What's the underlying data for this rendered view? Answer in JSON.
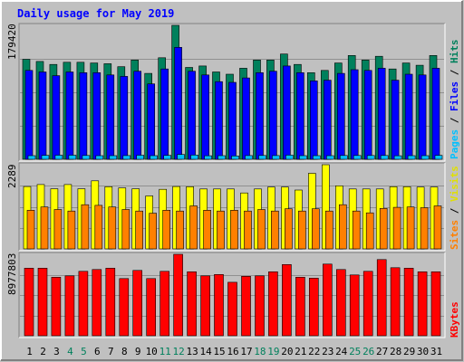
{
  "chart_data": {
    "type": "bar",
    "title": "Daily usage for May 2019",
    "colors": {
      "background": "#C0C0C0",
      "title": "#0000FF",
      "hits": "#00805C",
      "files": "#0000FF",
      "pages": "#00C0FF",
      "visits": "#FFFF00",
      "sites": "#FF8000",
      "kbytes": "#FF0000",
      "weekend": "#00805C",
      "weekday": "#000000"
    },
    "categories": [
      "1",
      "2",
      "3",
      "4",
      "5",
      "6",
      "7",
      "8",
      "9",
      "10",
      "11",
      "12",
      "13",
      "14",
      "15",
      "16",
      "17",
      "18",
      "19",
      "20",
      "21",
      "22",
      "23",
      "24",
      "25",
      "26",
      "27",
      "28",
      "29",
      "30",
      "31"
    ],
    "weekend_days": [
      4,
      5,
      11,
      12,
      18,
      19,
      25,
      26
    ],
    "panels": [
      {
        "id": "hits-panel",
        "ymax": 179420,
        "ymax_label": "179420",
        "legend": [
          {
            "name": "Pages",
            "color": "#00C0FF"
          },
          {
            "name": "Files",
            "color": "#0000FF"
          },
          {
            "name": "Hits",
            "color": "#00805C"
          }
        ],
        "series": [
          {
            "name": "Hits",
            "values": [
              134000,
              131000,
              127000,
              130000,
              130000,
              129000,
              128000,
              124000,
              133000,
              115000,
              136000,
              179420,
              123000,
              125000,
              117000,
              114000,
              122000,
              133000,
              133000,
              141000,
              127000,
              116000,
              119000,
              129000,
              139000,
              133000,
              138000,
              121000,
              129000,
              126000,
              139000
            ]
          },
          {
            "name": "Files",
            "values": [
              119000,
              117000,
              112000,
              117000,
              116000,
              116000,
              113000,
              111000,
              118000,
              101000,
              121000,
              150000,
              118000,
              113000,
              104000,
              103000,
              109000,
              116000,
              118000,
              125000,
              116000,
              105000,
              106000,
              115000,
              120000,
              119000,
              122000,
              106000,
              114000,
              113000,
              122000
            ]
          },
          {
            "name": "Pages",
            "values": [
              4800,
              5200,
              5400,
              5400,
              5100,
              4900,
              4900,
              5000,
              5400,
              4800,
              5200,
              6400,
              5700,
              4700,
              4900,
              4500,
              5000,
              5100,
              5000,
              5600,
              4900,
              4800,
              4800,
              5100,
              5100,
              5100,
              5100,
              4700,
              4800,
              4800,
              5200
            ]
          }
        ]
      },
      {
        "id": "visits-panel",
        "ymax": 2289,
        "ymax_label": "2289",
        "legend": [
          {
            "name": "Sites",
            "color": "#FF8000"
          },
          {
            "name": "Visits",
            "color": "#FFFF00"
          }
        ],
        "series": [
          {
            "name": "Visits",
            "values": [
              1695,
              1750,
              1635,
              1750,
              1635,
              1850,
              1690,
              1660,
              1635,
              1440,
              1620,
              1695,
              1690,
              1630,
              1630,
              1630,
              1520,
              1630,
              1680,
              1680,
              1600,
              2055,
              2289,
              1715,
              1630,
              1630,
              1630,
              1690,
              1690,
              1680,
              1680
            ]
          },
          {
            "name": "Sites",
            "values": [
              1050,
              1140,
              1070,
              1030,
              1200,
              1185,
              1140,
              1070,
              1030,
              970,
              1050,
              1030,
              1170,
              1050,
              1030,
              1050,
              1030,
              1070,
              1030,
              1090,
              1030,
              1090,
              1030,
              1200,
              1030,
              980,
              1100,
              1130,
              1140,
              1120,
              1170
            ]
          }
        ]
      },
      {
        "id": "kbytes-panel",
        "ymax": 8977803,
        "ymax_label": "8977803",
        "legend": [
          {
            "name": "KBytes",
            "color": "#FF0000"
          }
        ],
        "series": [
          {
            "name": "KBytes",
            "values": [
              7450000,
              7450000,
              6450000,
              6600000,
              7100000,
              7300000,
              7450000,
              6300000,
              7200000,
              6300000,
              7100000,
              8977803,
              7050000,
              6600000,
              6750000,
              5900000,
              6550000,
              6600000,
              7050000,
              7850000,
              6450000,
              6350000,
              7900000,
              7300000,
              6700000,
              7100000,
              8400000,
              7500000,
              7450000,
              7050000,
              7050000
            ]
          }
        ]
      }
    ]
  }
}
